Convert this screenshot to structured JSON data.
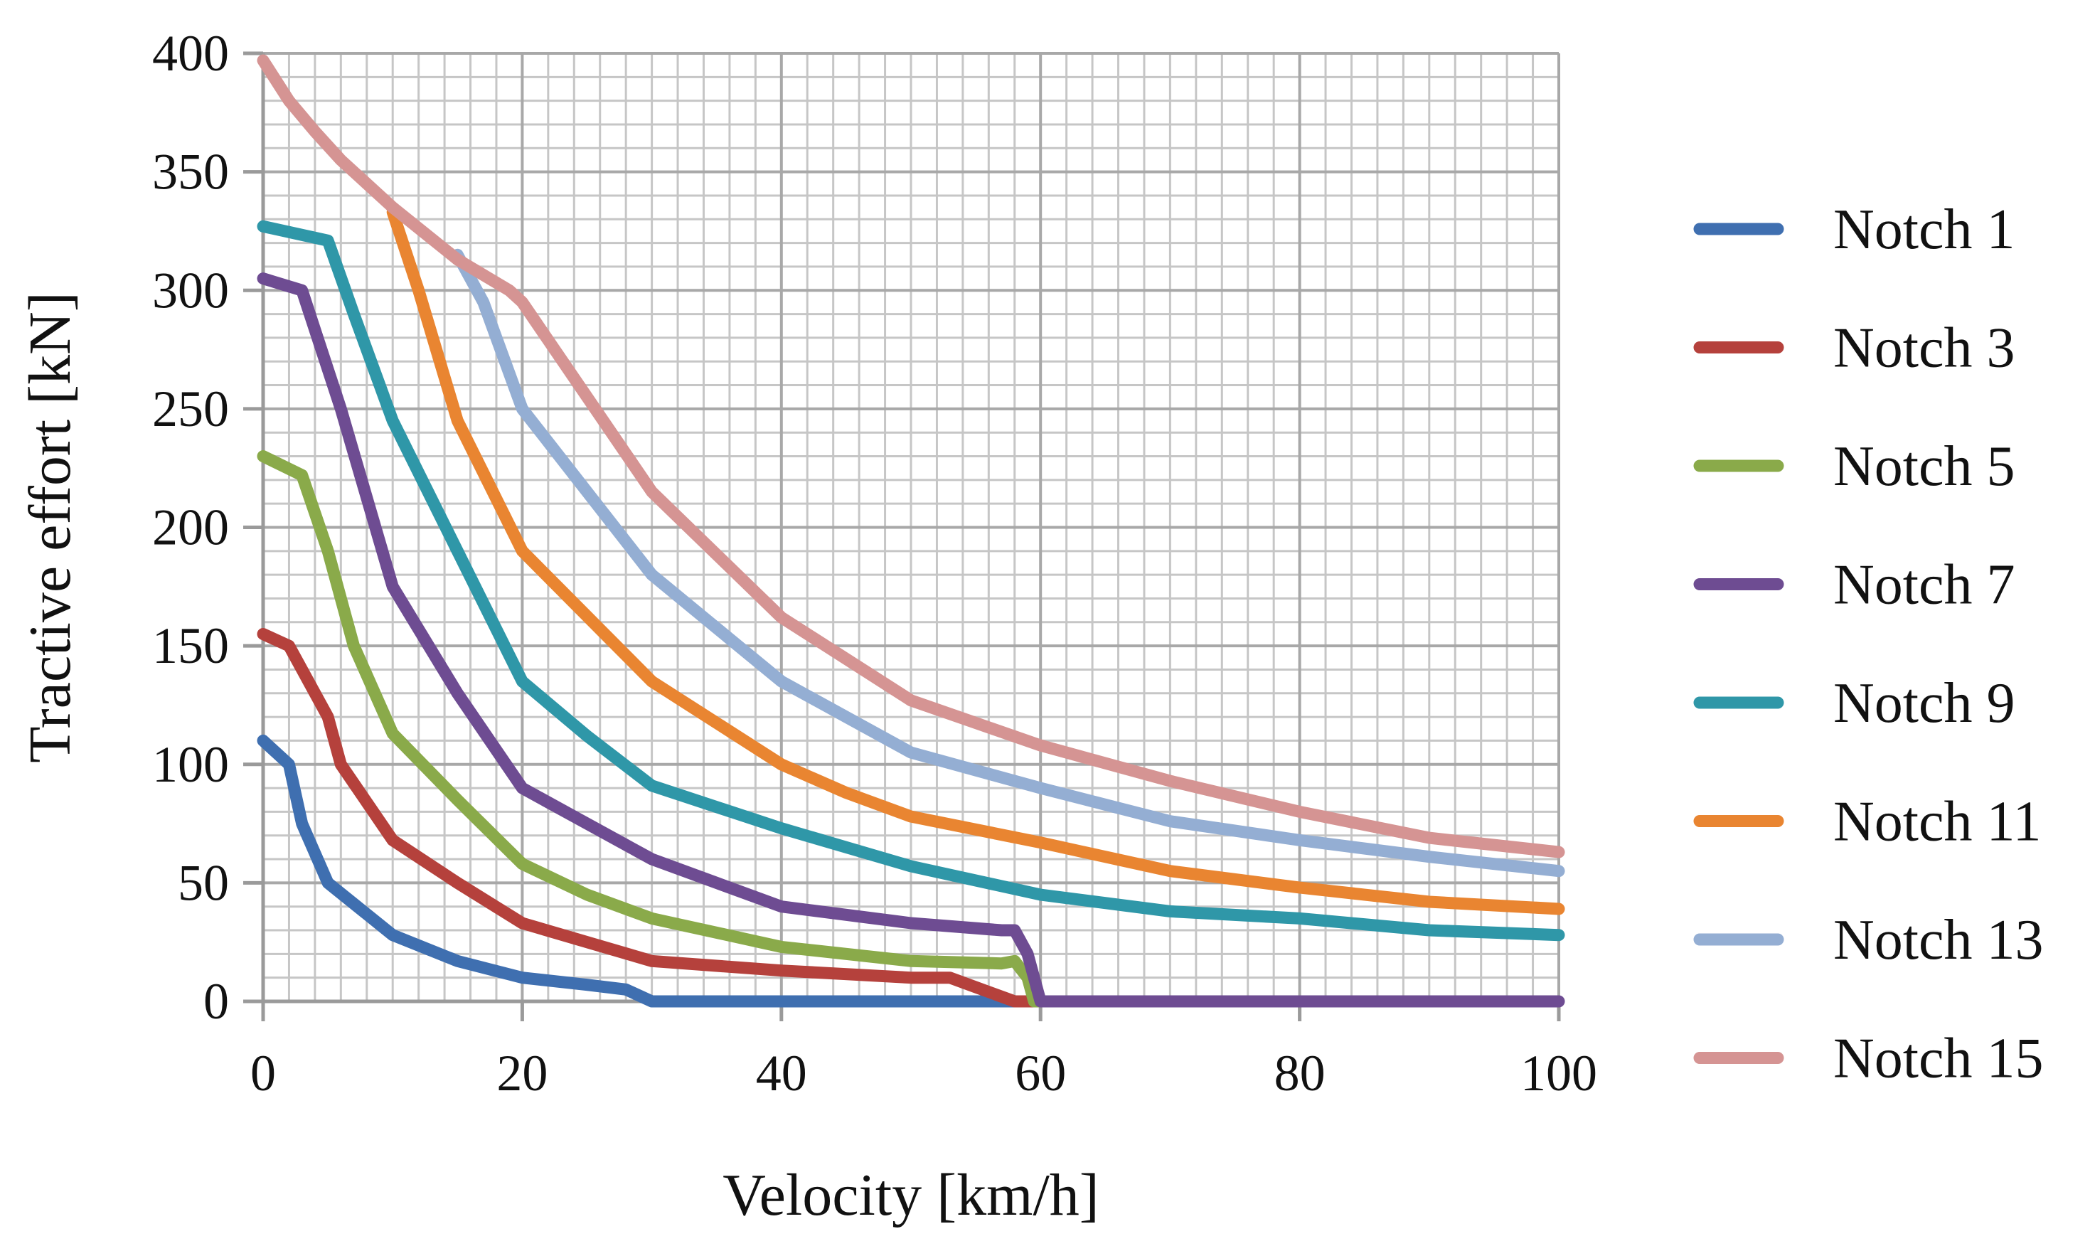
{
  "chart_data": {
    "type": "line",
    "title": "",
    "xlabel": "Velocity [km/h]",
    "ylabel": "Tractive effort [kN]",
    "xlim": [
      0,
      100
    ],
    "ylim": [
      0,
      400
    ],
    "x_ticks": [
      "0",
      "20",
      "40",
      "60",
      "80",
      "100"
    ],
    "y_ticks": [
      "0",
      "50",
      "100",
      "150",
      "200",
      "250",
      "300",
      "350",
      "400"
    ],
    "grid": {
      "major_x_step": 20,
      "major_y_step": 50,
      "minor_x_step": 2,
      "minor_y_step": 10
    },
    "legend_position": "right",
    "series": [
      {
        "name": "Notch 1",
        "color": "#3f6fb0",
        "points": [
          [
            0,
            110
          ],
          [
            2,
            100
          ],
          [
            3,
            75
          ],
          [
            5,
            50
          ],
          [
            10,
            28
          ],
          [
            15,
            17
          ],
          [
            20,
            10
          ],
          [
            25,
            7
          ],
          [
            28,
            5
          ],
          [
            30,
            0
          ],
          [
            40,
            0
          ],
          [
            50,
            0
          ],
          [
            58,
            0
          ],
          [
            60,
            0
          ]
        ]
      },
      {
        "name": "Notch 3",
        "color": "#b5413c",
        "points": [
          [
            0,
            155
          ],
          [
            2,
            150
          ],
          [
            5,
            120
          ],
          [
            6,
            100
          ],
          [
            10,
            68
          ],
          [
            15,
            50
          ],
          [
            20,
            33
          ],
          [
            25,
            25
          ],
          [
            30,
            17
          ],
          [
            40,
            13
          ],
          [
            50,
            10
          ],
          [
            53,
            10
          ],
          [
            56,
            4
          ],
          [
            58,
            0
          ],
          [
            60,
            0
          ]
        ]
      },
      {
        "name": "Notch 5",
        "color": "#8aaa4a",
        "points": [
          [
            0,
            230
          ],
          [
            3,
            222
          ],
          [
            5,
            190
          ],
          [
            7,
            150
          ],
          [
            10,
            113
          ],
          [
            15,
            85
          ],
          [
            20,
            58
          ],
          [
            25,
            45
          ],
          [
            30,
            35
          ],
          [
            40,
            23
          ],
          [
            50,
            17
          ],
          [
            57,
            16
          ],
          [
            58,
            17
          ],
          [
            59,
            10
          ],
          [
            59.5,
            0
          ],
          [
            60,
            0
          ]
        ]
      },
      {
        "name": "Notch 7",
        "color": "#6e4c92",
        "points": [
          [
            0,
            305
          ],
          [
            3,
            300
          ],
          [
            6,
            250
          ],
          [
            10,
            175
          ],
          [
            15,
            130
          ],
          [
            20,
            90
          ],
          [
            25,
            75
          ],
          [
            30,
            60
          ],
          [
            35,
            50
          ],
          [
            40,
            40
          ],
          [
            50,
            33
          ],
          [
            57,
            30
          ],
          [
            58,
            30
          ],
          [
            59,
            20
          ],
          [
            59.5,
            10
          ],
          [
            60,
            0
          ],
          [
            70,
            0
          ],
          [
            80,
            0
          ],
          [
            90,
            0
          ],
          [
            100,
            0
          ]
        ]
      },
      {
        "name": "Notch 9",
        "color": "#2f97a8",
        "points": [
          [
            0,
            327
          ],
          [
            5,
            321
          ],
          [
            7,
            290
          ],
          [
            10,
            245
          ],
          [
            15,
            190
          ],
          [
            20,
            135
          ],
          [
            25,
            112
          ],
          [
            30,
            91
          ],
          [
            40,
            73
          ],
          [
            50,
            57
          ],
          [
            60,
            45
          ],
          [
            70,
            38
          ],
          [
            80,
            35
          ],
          [
            90,
            30
          ],
          [
            100,
            28
          ]
        ]
      },
      {
        "name": "Notch 11",
        "color": "#e98531",
        "points": [
          [
            10,
            333
          ],
          [
            12,
            300
          ],
          [
            15,
            245
          ],
          [
            20,
            190
          ],
          [
            30,
            135
          ],
          [
            40,
            100
          ],
          [
            45,
            88
          ],
          [
            50,
            78
          ],
          [
            60,
            67
          ],
          [
            70,
            55
          ],
          [
            80,
            48
          ],
          [
            90,
            42
          ],
          [
            100,
            39
          ]
        ]
      },
      {
        "name": "Notch 13",
        "color": "#94aed3",
        "points": [
          [
            15,
            315
          ],
          [
            17,
            295
          ],
          [
            20,
            250
          ],
          [
            30,
            180
          ],
          [
            40,
            135
          ],
          [
            50,
            105
          ],
          [
            60,
            90
          ],
          [
            70,
            76
          ],
          [
            80,
            68
          ],
          [
            90,
            61
          ],
          [
            100,
            55
          ]
        ]
      },
      {
        "name": "Notch 15",
        "color": "#d59493",
        "points": [
          [
            0,
            397
          ],
          [
            2,
            380
          ],
          [
            4,
            367
          ],
          [
            6,
            355
          ],
          [
            8,
            345
          ],
          [
            10,
            335
          ],
          [
            15,
            313
          ],
          [
            19,
            300
          ],
          [
            20,
            295
          ],
          [
            25,
            255
          ],
          [
            30,
            215
          ],
          [
            40,
            162
          ],
          [
            50,
            127
          ],
          [
            60,
            108
          ],
          [
            70,
            93
          ],
          [
            80,
            80
          ],
          [
            90,
            69
          ],
          [
            100,
            63
          ]
        ]
      }
    ]
  }
}
